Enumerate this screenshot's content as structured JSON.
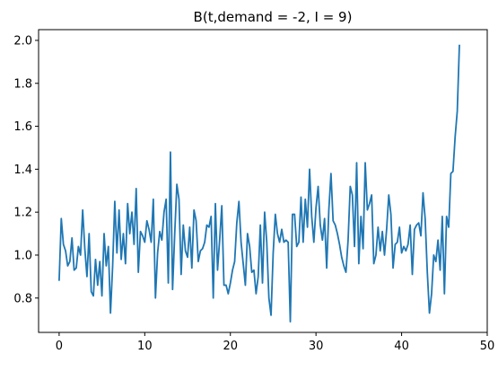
{
  "chart_data": {
    "type": "line",
    "title": "B(t,demand = -2, I = 9)",
    "xlabel": "",
    "ylabel": "",
    "xlim": [
      -2.4,
      50.0
    ],
    "ylim": [
      0.64,
      2.05
    ],
    "x_ticks": [
      0,
      10,
      20,
      30,
      40,
      50
    ],
    "y_ticks": [
      0.8,
      1.0,
      1.2,
      1.4,
      1.6,
      1.8,
      2.0
    ],
    "x_tick_labels": [
      "0",
      "10",
      "20",
      "30",
      "40",
      "50"
    ],
    "y_tick_labels": [
      "0.8",
      "1.0",
      "1.2",
      "1.4",
      "1.6",
      "1.8",
      "2.0"
    ],
    "grid": false,
    "color": "#1f77b4",
    "series": [
      {
        "x_start": 0,
        "x_step": 0.25,
        "values": [
          0.88,
          1.17,
          1.05,
          1.02,
          0.95,
          0.97,
          1.08,
          0.93,
          0.94,
          1.04,
          1.0,
          1.21,
          1.03,
          0.9,
          1.1,
          0.83,
          0.81,
          0.98,
          0.86,
          0.97,
          0.81,
          1.1,
          0.95,
          1.04,
          0.73,
          0.95,
          1.25,
          1.01,
          1.21,
          0.98,
          1.1,
          0.96,
          1.24,
          1.1,
          1.2,
          1.05,
          1.31,
          0.92,
          1.11,
          1.09,
          1.06,
          1.16,
          1.12,
          1.06,
          1.26,
          0.8,
          1.01,
          1.11,
          1.07,
          1.2,
          1.26,
          0.87,
          1.48,
          0.84,
          1.1,
          1.33,
          1.26,
          0.91,
          1.14,
          1.02,
          0.99,
          1.13,
          0.94,
          1.21,
          1.16,
          0.97,
          1.02,
          1.03,
          1.06,
          1.14,
          1.13,
          1.18,
          0.8,
          1.24,
          0.93,
          1.07,
          1.23,
          0.86,
          0.86,
          0.82,
          0.87,
          0.93,
          0.97,
          1.15,
          1.25,
          1.06,
          0.96,
          0.86,
          1.1,
          1.04,
          0.92,
          0.93,
          0.82,
          0.9,
          1.14,
          0.87,
          1.2,
          1.06,
          0.8,
          0.72,
          1.01,
          1.19,
          1.1,
          1.06,
          1.12,
          1.06,
          1.07,
          1.06,
          0.69,
          1.19,
          1.19,
          1.04,
          1.06,
          1.27,
          1.06,
          1.26,
          1.13,
          1.4,
          1.18,
          1.06,
          1.22,
          1.32,
          1.14,
          1.07,
          1.17,
          0.94,
          1.21,
          1.38,
          1.16,
          1.14,
          1.1,
          1.05,
          0.99,
          0.95,
          0.92,
          1.07,
          1.32,
          1.28,
          1.04,
          1.43,
          0.96,
          1.18,
          1.03,
          1.43,
          1.21,
          1.24,
          1.28,
          0.96,
          1.0,
          1.13,
          1.02,
          1.11,
          1.0,
          1.12,
          1.28,
          1.19,
          0.94,
          1.05,
          1.06,
          1.13,
          1.01,
          1.04,
          1.02,
          1.05,
          1.14,
          0.91,
          1.12,
          1.14,
          1.15,
          1.09,
          1.29,
          1.17,
          0.92,
          0.73,
          0.82,
          1.0,
          0.97,
          1.07,
          0.93,
          1.18,
          0.82,
          1.18,
          1.13,
          1.38,
          1.39,
          1.55,
          1.67,
          1.98
        ]
      }
    ]
  }
}
